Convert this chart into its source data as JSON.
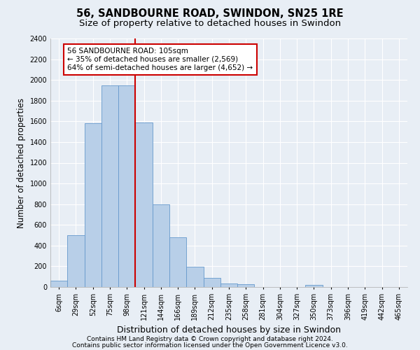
{
  "title": "56, SANDBOURNE ROAD, SWINDON, SN25 1RE",
  "subtitle": "Size of property relative to detached houses in Swindon",
  "xlabel": "Distribution of detached houses by size in Swindon",
  "ylabel": "Number of detached properties",
  "footnote1": "Contains HM Land Registry data © Crown copyright and database right 2024.",
  "footnote2": "Contains public sector information licensed under the Open Government Licence v3.0.",
  "bin_labels": [
    "6sqm",
    "29sqm",
    "52sqm",
    "75sqm",
    "98sqm",
    "121sqm",
    "144sqm",
    "166sqm",
    "189sqm",
    "212sqm",
    "235sqm",
    "258sqm",
    "281sqm",
    "304sqm",
    "327sqm",
    "350sqm",
    "373sqm",
    "396sqm",
    "419sqm",
    "442sqm",
    "465sqm"
  ],
  "bar_heights": [
    60,
    500,
    1580,
    1950,
    1950,
    1590,
    800,
    480,
    195,
    90,
    35,
    30,
    0,
    0,
    0,
    20,
    0,
    0,
    0,
    0,
    0
  ],
  "bar_color": "#b8cfe8",
  "bar_edge_color": "#6699cc",
  "vline_x": 4.0,
  "vline_color": "#cc0000",
  "annotation_text": "56 SANDBOURNE ROAD: 105sqm\n← 35% of detached houses are smaller (2,569)\n64% of semi-detached houses are larger (4,652) →",
  "annotation_box_color": "white",
  "annotation_box_edge_color": "#cc0000",
  "ylim": [
    0,
    2400
  ],
  "yticks": [
    0,
    200,
    400,
    600,
    800,
    1000,
    1200,
    1400,
    1600,
    1800,
    2000,
    2200,
    2400
  ],
  "bg_color": "#e8eef5",
  "axes_bg_color": "#e8eef5",
  "grid_color": "white",
  "title_fontsize": 10.5,
  "subtitle_fontsize": 9.5,
  "ylabel_fontsize": 8.5,
  "xlabel_fontsize": 9,
  "tick_fontsize": 7,
  "annotation_fontsize": 7.5,
  "footnote_fontsize": 6.5
}
